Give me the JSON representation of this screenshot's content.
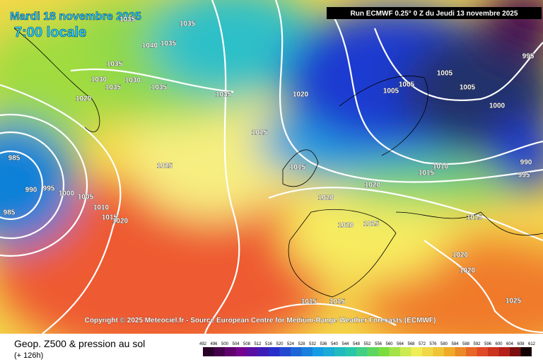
{
  "header": {
    "date": "Mardi 18 novembre 2025",
    "time": "7:00 locale",
    "run": "Run ECMWF 0.25° 0 Z du Jeudi 13 novembre 2025",
    "copyright": "Copyright © 2025 Meteociel.fr - Source European Centre for Medium-Range Weather Forecasts (ECMWF)"
  },
  "legend": {
    "title": "Geop. Z500 & pression au sol",
    "step": "(+ 126h)",
    "scale": [
      "492",
      "496",
      "500",
      "504",
      "508",
      "512",
      "516",
      "520",
      "524",
      "528",
      "532",
      "536",
      "540",
      "544",
      "548",
      "552",
      "556",
      "560",
      "564",
      "568",
      "572",
      "576",
      "580",
      "584",
      "588",
      "592",
      "596",
      "600",
      "604",
      "608",
      "612"
    ]
  },
  "isobar_labels": [
    "1035",
    "1035",
    "1040",
    "1035",
    "1035",
    "1030",
    "1030",
    "1035",
    "1035",
    "1035",
    "1020",
    "1020",
    "1015",
    "1025",
    "985",
    "990",
    "995",
    "1000",
    "1005",
    "1010",
    "1015",
    "1020",
    "985",
    "1015",
    "1020",
    "1020",
    "1015",
    "1010",
    "1020",
    "1015",
    "1015",
    "1005",
    "1005",
    "1005",
    "1005",
    "1000",
    "995",
    "990",
    "995",
    "1020",
    "1020",
    "1025",
    "1015",
    "1015"
  ]
}
